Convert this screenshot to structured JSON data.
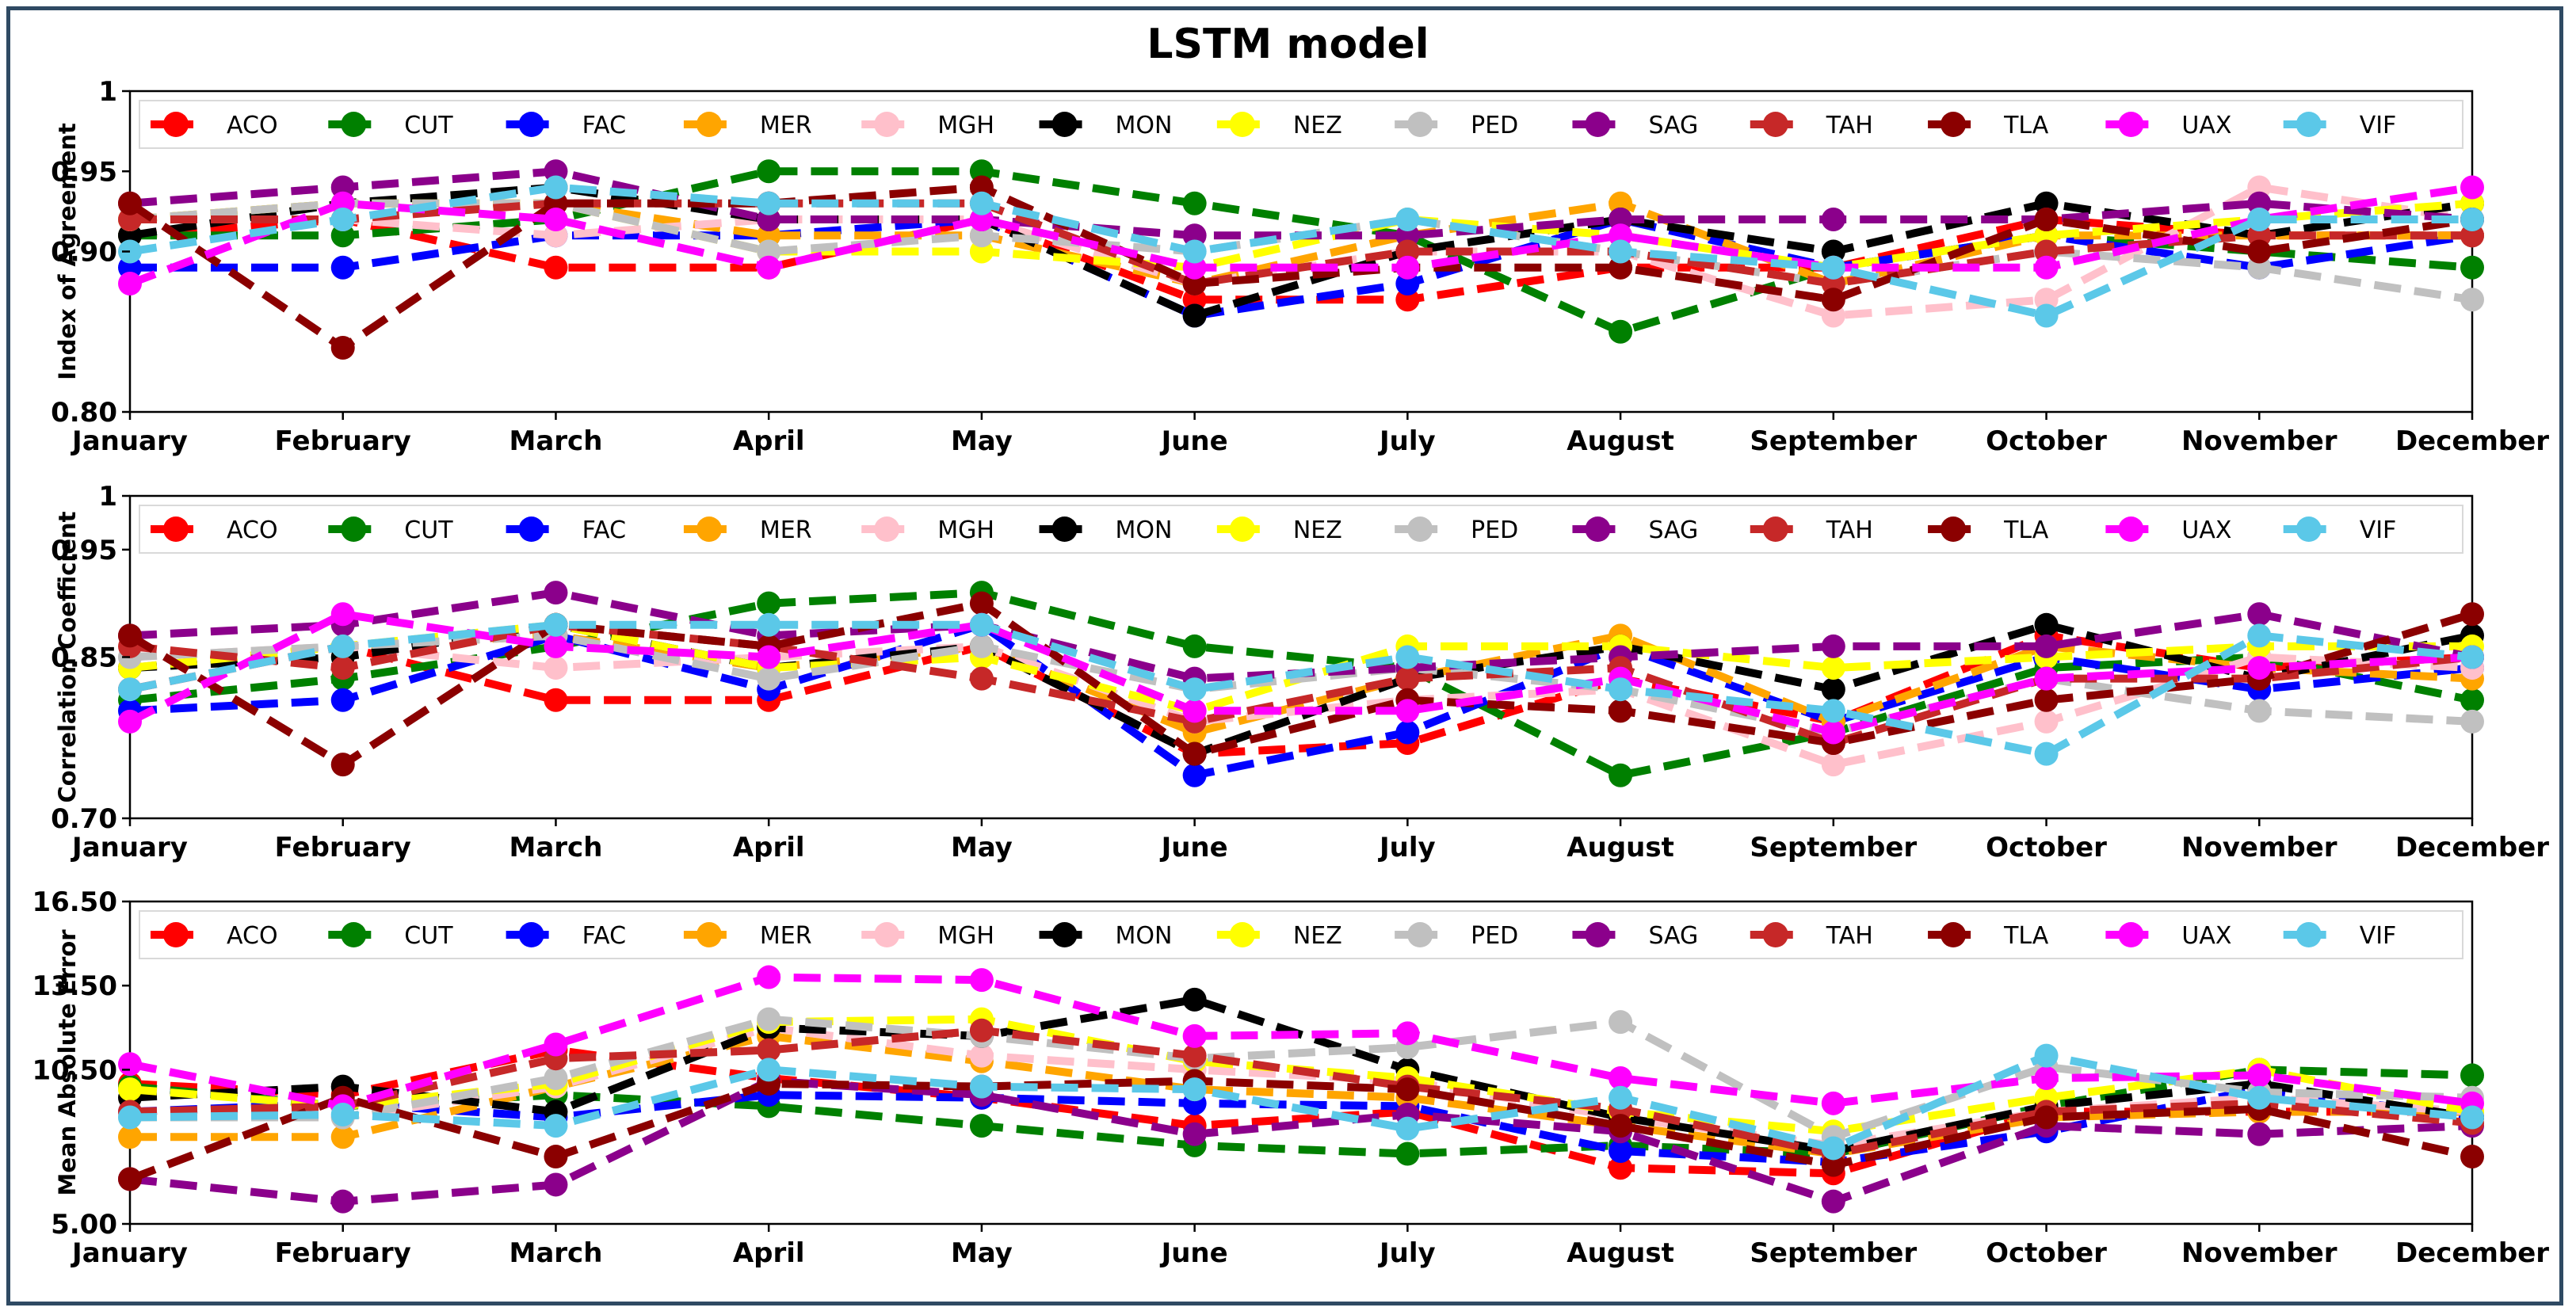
{
  "figure": {
    "title": "LSTM model"
  },
  "chart_data": [
    {
      "type": "line",
      "ylabel": "Index of Agreement",
      "ylim": [
        0.8,
        1.0
      ],
      "yticks": [
        "0.80",
        "0.90",
        "0.95",
        "1"
      ],
      "ytick_values": [
        0.8,
        0.9,
        0.95,
        1.0
      ],
      "categories": [
        "January",
        "February",
        "March",
        "April",
        "May",
        "June",
        "July",
        "August",
        "September",
        "October",
        "November",
        "December"
      ],
      "series": [
        {
          "name": "ACO",
          "color": "#ff0000",
          "values": [
            0.91,
            0.92,
            0.89,
            0.89,
            0.92,
            0.87,
            0.87,
            0.89,
            0.89,
            0.92,
            0.91,
            0.91
          ]
        },
        {
          "name": "CUT",
          "color": "#008000",
          "values": [
            0.91,
            0.91,
            0.92,
            0.95,
            0.95,
            0.93,
            0.91,
            0.85,
            0.89,
            0.91,
            0.9,
            0.89
          ]
        },
        {
          "name": "FAC",
          "color": "#0000ff",
          "values": [
            0.89,
            0.89,
            0.91,
            0.91,
            0.92,
            0.86,
            0.88,
            0.92,
            0.89,
            0.91,
            0.89,
            0.91
          ]
        },
        {
          "name": "MER",
          "color": "#ffa500",
          "values": [
            0.92,
            0.93,
            0.93,
            0.91,
            0.91,
            0.88,
            0.91,
            0.93,
            0.88,
            0.91,
            0.91,
            0.91
          ]
        },
        {
          "name": "MGH",
          "color": "#ffc0cb",
          "values": [
            0.92,
            0.92,
            0.91,
            0.92,
            0.92,
            0.88,
            0.9,
            0.9,
            0.86,
            0.87,
            0.94,
            0.92
          ]
        },
        {
          "name": "MON",
          "color": "#000000",
          "values": [
            0.91,
            0.93,
            0.94,
            0.92,
            0.92,
            0.86,
            0.9,
            0.92,
            0.9,
            0.93,
            0.91,
            0.93
          ]
        },
        {
          "name": "NEZ",
          "color": "#ffff00",
          "values": [
            0.92,
            0.93,
            0.93,
            0.9,
            0.9,
            0.89,
            0.92,
            0.91,
            0.89,
            0.91,
            0.92,
            0.93
          ]
        },
        {
          "name": "PED",
          "color": "#c0c0c0",
          "values": [
            0.92,
            0.93,
            0.93,
            0.9,
            0.91,
            0.9,
            0.92,
            0.9,
            0.88,
            0.9,
            0.89,
            0.87
          ]
        },
        {
          "name": "SAG",
          "color": "#8b008b",
          "values": [
            0.93,
            0.94,
            0.95,
            0.92,
            0.92,
            0.91,
            0.91,
            0.92,
            0.92,
            0.92,
            0.93,
            0.92
          ]
        },
        {
          "name": "TAH",
          "color": "#c62828",
          "values": [
            0.92,
            0.92,
            0.93,
            0.93,
            0.93,
            0.88,
            0.9,
            0.9,
            0.88,
            0.9,
            0.91,
            0.91
          ]
        },
        {
          "name": "TLA",
          "color": "#8b0000",
          "values": [
            0.93,
            0.84,
            0.93,
            0.93,
            0.94,
            0.88,
            0.89,
            0.89,
            0.87,
            0.92,
            0.9,
            0.92
          ]
        },
        {
          "name": "UAX",
          "color": "#ff00ff",
          "values": [
            0.88,
            0.93,
            0.92,
            0.89,
            0.92,
            0.89,
            0.89,
            0.91,
            0.89,
            0.89,
            0.92,
            0.94
          ]
        },
        {
          "name": "VIF",
          "color": "#5bc8e8",
          "values": [
            0.9,
            0.92,
            0.94,
            0.93,
            0.93,
            0.9,
            0.92,
            0.9,
            0.89,
            0.86,
            0.92,
            0.92
          ]
        }
      ]
    },
    {
      "type": "line",
      "ylabel": "Correlation Coefficient",
      "ylim": [
        0.7,
        1.0
      ],
      "yticks": [
        "0.70",
        "0.85",
        "0.95",
        "1"
      ],
      "ytick_values": [
        0.7,
        0.85,
        0.95,
        1.0
      ],
      "categories": [
        "January",
        "February",
        "March",
        "April",
        "May",
        "June",
        "July",
        "August",
        "September",
        "October",
        "November",
        "December"
      ],
      "series": [
        {
          "name": "ACO",
          "color": "#ff0000",
          "values": [
            0.82,
            0.86,
            0.81,
            0.81,
            0.86,
            0.76,
            0.77,
            0.83,
            0.79,
            0.87,
            0.84,
            0.85
          ]
        },
        {
          "name": "CUT",
          "color": "#008000",
          "values": [
            0.81,
            0.83,
            0.86,
            0.9,
            0.91,
            0.86,
            0.84,
            0.74,
            0.78,
            0.84,
            0.85,
            0.81
          ]
        },
        {
          "name": "FAC",
          "color": "#0000ff",
          "values": [
            0.8,
            0.81,
            0.87,
            0.82,
            0.88,
            0.74,
            0.78,
            0.86,
            0.79,
            0.85,
            0.82,
            0.84
          ]
        },
        {
          "name": "MER",
          "color": "#ffa500",
          "values": [
            0.84,
            0.86,
            0.87,
            0.84,
            0.86,
            0.78,
            0.83,
            0.87,
            0.79,
            0.86,
            0.84,
            0.83
          ]
        },
        {
          "name": "MGH",
          "color": "#ffc0cb",
          "values": [
            0.85,
            0.86,
            0.84,
            0.85,
            0.86,
            0.79,
            0.81,
            0.82,
            0.75,
            0.79,
            0.85,
            0.84
          ]
        },
        {
          "name": "MON",
          "color": "#000000",
          "values": [
            0.84,
            0.85,
            0.88,
            0.84,
            0.86,
            0.76,
            0.83,
            0.86,
            0.82,
            0.88,
            0.83,
            0.87
          ]
        },
        {
          "name": "NEZ",
          "color": "#ffff00",
          "values": [
            0.84,
            0.86,
            0.88,
            0.84,
            0.85,
            0.8,
            0.86,
            0.86,
            0.84,
            0.85,
            0.86,
            0.86
          ]
        },
        {
          "name": "PED",
          "color": "#c0c0c0",
          "values": [
            0.85,
            0.86,
            0.87,
            0.83,
            0.86,
            0.82,
            0.84,
            0.82,
            0.78,
            0.83,
            0.8,
            0.79
          ]
        },
        {
          "name": "SAG",
          "color": "#8b008b",
          "values": [
            0.87,
            0.88,
            0.91,
            0.87,
            0.88,
            0.83,
            0.84,
            0.85,
            0.86,
            0.86,
            0.89,
            0.85
          ]
        },
        {
          "name": "TAH",
          "color": "#c62828",
          "values": [
            0.86,
            0.84,
            0.88,
            0.86,
            0.83,
            0.79,
            0.83,
            0.84,
            0.77,
            0.83,
            0.83,
            0.85
          ]
        },
        {
          "name": "TLA",
          "color": "#8b0000",
          "values": [
            0.87,
            0.75,
            0.88,
            0.86,
            0.9,
            0.76,
            0.81,
            0.8,
            0.77,
            0.81,
            0.83,
            0.89
          ]
        },
        {
          "name": "UAX",
          "color": "#ff00ff",
          "values": [
            0.79,
            0.89,
            0.86,
            0.85,
            0.88,
            0.8,
            0.8,
            0.83,
            0.78,
            0.83,
            0.84,
            0.85
          ]
        },
        {
          "name": "VIF",
          "color": "#5bc8e8",
          "values": [
            0.82,
            0.86,
            0.88,
            0.88,
            0.88,
            0.82,
            0.85,
            0.82,
            0.8,
            0.76,
            0.87,
            0.85
          ]
        }
      ]
    },
    {
      "type": "line",
      "ylabel": "Mean Absolute Error",
      "ylim": [
        5.0,
        16.5
      ],
      "yticks": [
        "5.00",
        "10.50",
        "13.50",
        "16.50"
      ],
      "ytick_values": [
        5.0,
        10.5,
        13.5,
        16.5
      ],
      "categories": [
        "January",
        "February",
        "March",
        "April",
        "May",
        "June",
        "July",
        "August",
        "September",
        "October",
        "November",
        "December"
      ],
      "series": [
        {
          "name": "ACO",
          "color": "#ff0000",
          "values": [
            10.0,
            9.6,
            11.2,
            10.2,
            9.5,
            8.5,
            9.0,
            7.0,
            6.8,
            9.0,
            9.0,
            9.0
          ]
        },
        {
          "name": "CUT",
          "color": "#008000",
          "values": [
            9.9,
            9.2,
            9.6,
            9.2,
            8.5,
            7.8,
            7.5,
            7.8,
            7.5,
            9.2,
            10.5,
            10.3
          ]
        },
        {
          "name": "FAC",
          "color": "#0000ff",
          "values": [
            9.0,
            9.3,
            8.8,
            9.6,
            9.5,
            9.3,
            9.2,
            7.6,
            7.2,
            8.3,
            9.8,
            8.8
          ]
        },
        {
          "name": "MER",
          "color": "#ffa500",
          "values": [
            8.1,
            8.1,
            9.9,
            11.7,
            10.8,
            9.8,
            9.5,
            8.5,
            7.5,
            8.8,
            9.0,
            9.0
          ]
        },
        {
          "name": "MGH",
          "color": "#ffc0cb",
          "values": [
            8.9,
            8.8,
            9.9,
            12.0,
            11.0,
            10.5,
            10.1,
            8.8,
            7.8,
            9.0,
            9.5,
            9.0
          ]
        },
        {
          "name": "MON",
          "color": "#000000",
          "values": [
            9.5,
            9.9,
            9.0,
            12.0,
            11.7,
            13.0,
            10.5,
            8.8,
            7.6,
            9.2,
            10.0,
            8.8
          ]
        },
        {
          "name": "NEZ",
          "color": "#ffff00",
          "values": [
            9.8,
            9.2,
            10.0,
            12.2,
            12.3,
            10.8,
            10.2,
            9.0,
            8.3,
            9.5,
            10.5,
            9.0
          ]
        },
        {
          "name": "PED",
          "color": "#c0c0c0",
          "values": [
            8.8,
            8.8,
            10.2,
            12.3,
            11.7,
            10.9,
            11.3,
            12.2,
            8.1,
            10.6,
            9.7,
            9.5
          ]
        },
        {
          "name": "SAG",
          "color": "#8b008b",
          "values": [
            6.6,
            5.8,
            6.4,
            10.1,
            9.6,
            8.2,
            8.9,
            8.3,
            5.8,
            8.5,
            8.2,
            8.5
          ]
        },
        {
          "name": "TAH",
          "color": "#c62828",
          "values": [
            9.0,
            9.2,
            10.9,
            11.2,
            11.9,
            11.0,
            9.9,
            9.1,
            7.5,
            9.0,
            9.3,
            8.6
          ]
        },
        {
          "name": "TLA",
          "color": "#8b0000",
          "values": [
            6.6,
            9.5,
            7.4,
            10.0,
            9.9,
            10.1,
            9.8,
            8.5,
            7.1,
            8.8,
            9.1,
            7.4
          ]
        },
        {
          "name": "UAX",
          "color": "#ff00ff",
          "values": [
            10.7,
            9.2,
            11.4,
            13.8,
            13.7,
            11.7,
            11.8,
            10.2,
            9.3,
            10.2,
            10.3,
            9.3
          ]
        },
        {
          "name": "VIF",
          "color": "#5bc8e8",
          "values": [
            8.8,
            8.9,
            8.5,
            10.5,
            9.9,
            9.8,
            8.4,
            9.5,
            7.7,
            11.0,
            9.5,
            8.8
          ]
        }
      ]
    }
  ]
}
